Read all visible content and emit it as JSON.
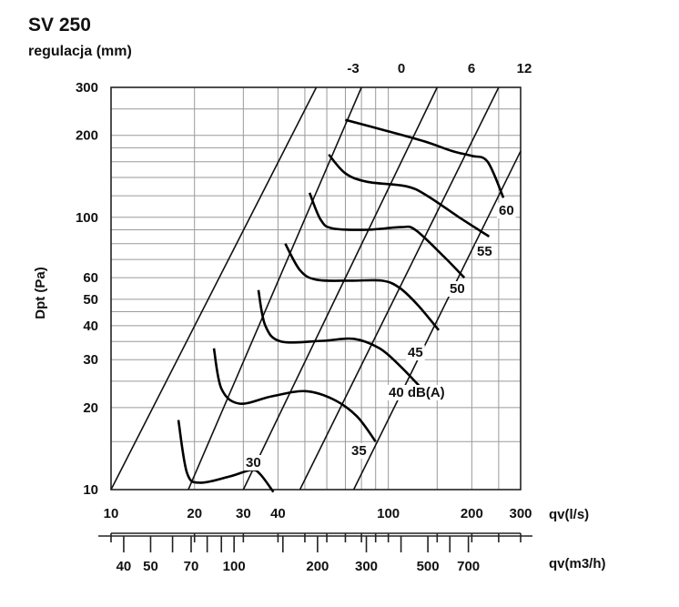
{
  "title": "SV 250",
  "subtitle": "regulacja (mm)",
  "chart_data": {
    "type": "line",
    "ylabel": "Dpt (Pa)",
    "xlabel": "qv(l/s)",
    "xlabel2": "qv(m3/h)",
    "xscale": "log",
    "yscale": "log",
    "xlim": [
      10,
      300
    ],
    "ylim": [
      10,
      300
    ],
    "x_ticks": [
      "10",
      "20",
      "30",
      "40",
      "100",
      "200",
      "300"
    ],
    "x_tick_values": [
      10,
      20,
      30,
      40,
      100,
      200,
      300
    ],
    "x2_ticks": [
      "40",
      "50",
      "70",
      "100",
      "200",
      "300",
      "500",
      "700"
    ],
    "x2_tick_values": [
      40,
      50,
      70,
      100,
      200,
      300,
      500,
      700
    ],
    "y_ticks": [
      "10",
      "20",
      "30",
      "40",
      "50",
      "60",
      "100",
      "200",
      "300"
    ],
    "y_tick_values": [
      10,
      20,
      30,
      40,
      50,
      60,
      100,
      200,
      300
    ],
    "system_curves": [
      {
        "label": "-3",
        "points": [
          [
            10,
            10
          ],
          [
            55,
            300
          ]
        ]
      },
      {
        "label": "0",
        "points": [
          [
            19,
            10
          ],
          [
            80,
            300
          ]
        ]
      },
      {
        "label": "6",
        "points": [
          [
            30,
            10
          ],
          [
            150,
            300
          ]
        ]
      },
      {
        "label": "12",
        "points": [
          [
            75,
            10
          ],
          [
            300,
            175
          ]
        ]
      },
      {
        "label": "",
        "points": [
          [
            48,
            10
          ],
          [
            250,
            300
          ]
        ]
      }
    ],
    "series": [
      {
        "name": "30",
        "points": [
          [
            17.5,
            18
          ],
          [
            18.8,
            11.5
          ],
          [
            21,
            10.6
          ],
          [
            27,
            11.2
          ],
          [
            32,
            11.8
          ],
          [
            34.5,
            11.4
          ],
          [
            38.5,
            9.8
          ]
        ]
      },
      {
        "name": "35",
        "points": [
          [
            23.5,
            33
          ],
          [
            25,
            23.5
          ],
          [
            29,
            20.7
          ],
          [
            38,
            22
          ],
          [
            50,
            23
          ],
          [
            63,
            21.5
          ],
          [
            77,
            18.6
          ],
          [
            90,
            15
          ]
        ]
      },
      {
        "name": "40 dB(A)",
        "points": [
          [
            34,
            54
          ],
          [
            36,
            40
          ],
          [
            41,
            35
          ],
          [
            58,
            35.2
          ],
          [
            75,
            35.8
          ],
          [
            93,
            33
          ],
          [
            110,
            28.5
          ],
          [
            132,
            23.5
          ]
        ]
      },
      {
        "name": "45",
        "points": [
          [
            42.5,
            80
          ],
          [
            48,
            64
          ],
          [
            55,
            59
          ],
          [
            73,
            58.5
          ],
          [
            95,
            58.5
          ],
          [
            110,
            55
          ],
          [
            128,
            47.5
          ],
          [
            152,
            38.5
          ]
        ]
      },
      {
        "name": "50",
        "points": [
          [
            52,
            123
          ],
          [
            57,
            98
          ],
          [
            63,
            91
          ],
          [
            84,
            90
          ],
          [
            111,
            92
          ],
          [
            125,
            90
          ],
          [
            158,
            72
          ],
          [
            188,
            60
          ]
        ]
      },
      {
        "name": "55",
        "points": [
          [
            61,
            170
          ],
          [
            70,
            145
          ],
          [
            84,
            135
          ],
          [
            116,
            130
          ],
          [
            138,
            120
          ],
          [
            180,
            100
          ],
          [
            231,
            85
          ]
        ]
      },
      {
        "name": "60",
        "points": [
          [
            70,
            228
          ],
          [
            98,
            208
          ],
          [
            135,
            190
          ],
          [
            170,
            175
          ],
          [
            200,
            168
          ],
          [
            228,
            160
          ],
          [
            260,
            118
          ]
        ]
      }
    ],
    "series_labels": [
      "30",
      "35",
      "40 dB(A)",
      "45",
      "50",
      "55",
      "60"
    ],
    "top_labels": [
      "-3",
      "0",
      "6",
      "12"
    ]
  }
}
